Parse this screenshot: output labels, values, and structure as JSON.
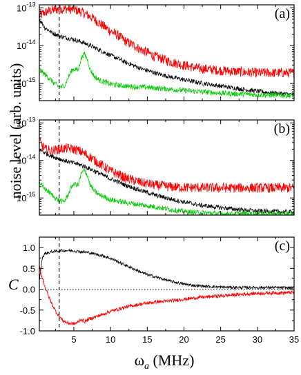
{
  "figure": {
    "shared_ylabel": "noise level (arb. units)",
    "x_label_omega": "ω",
    "x_label_sub": "a",
    "x_label_unit": " (MHz)",
    "vline_x": 3,
    "colors": {
      "red": "#ff0000",
      "black": "#000000",
      "green": "#00cc00"
    }
  },
  "chart_data": [
    {
      "id": "a",
      "type": "line",
      "panel_label": "(a)",
      "y_scale": "log",
      "xlim": [
        0.3,
        35
      ],
      "ylim": [
        3.5e-16,
        1.2e-13
      ],
      "yticks": [
        {
          "value": 1e-13,
          "mantissa": "10",
          "exp": "-13"
        },
        {
          "value": 1e-14,
          "mantissa": "10",
          "exp": "-14"
        },
        {
          "value": 1e-15,
          "mantissa": "10",
          "exp": "-15"
        }
      ],
      "show_xtick_labels": false,
      "series": [
        {
          "color": "red",
          "noise": 0.13,
          "x": [
            0.3,
            1,
            2,
            3,
            4,
            5,
            6,
            7,
            8,
            9,
            10,
            12,
            14,
            16,
            18,
            20,
            22,
            25,
            28,
            30,
            32,
            35
          ],
          "y": [
            6e-14,
            7.5e-14,
            8.6e-14,
            9.3e-14,
            9.4e-14,
            9e-14,
            7.8e-14,
            6.2e-14,
            4.6e-14,
            3.3e-14,
            2.4e-14,
            1.3e-14,
            8e-15,
            5.2e-15,
            3.8e-15,
            3e-15,
            2.5e-15,
            2.2e-15,
            2e-15,
            1.9e-15,
            1.9e-15,
            1.9e-15
          ]
        },
        {
          "color": "black",
          "noise": 0.06,
          "x": [
            0.3,
            1,
            2,
            3,
            4,
            5,
            6,
            7,
            8,
            9,
            10,
            12,
            14,
            16,
            18,
            20,
            22,
            25,
            28,
            30,
            32,
            35
          ],
          "y": [
            5e-14,
            3e-14,
            2.2e-14,
            1.8e-14,
            1.6e-14,
            1.45e-14,
            1.25e-14,
            1.05e-14,
            8.5e-15,
            6.8e-15,
            5.5e-15,
            3.6e-15,
            2.5e-15,
            1.9e-15,
            1.5e-15,
            1.25e-15,
            1.05e-15,
            8.5e-16,
            7e-16,
            6.2e-16,
            5.6e-16,
            5e-16
          ]
        },
        {
          "color": "green",
          "noise": 0.07,
          "x": [
            0.3,
            0.8,
            1.5,
            2.2,
            2.8,
            3.3,
            3.8,
            4.3,
            4.8,
            5.2,
            5.6,
            6,
            6.4,
            6.8,
            7.2,
            7.8,
            8.5,
            10,
            12,
            15,
            20,
            25,
            30,
            35
          ],
          "y": [
            2.4e-15,
            1.9e-15,
            1.45e-15,
            1.05e-15,
            8.5e-16,
            8e-16,
            9e-16,
            1.5e-15,
            2.3e-15,
            2.4e-15,
            2.2e-15,
            4.5e-15,
            6e-15,
            4.5e-15,
            2.3e-15,
            1.5e-15,
            1.2e-15,
            9.5e-16,
            8.5e-16,
            7.8e-16,
            6.5e-16,
            5.5e-16,
            5e-16,
            4.8e-16
          ]
        }
      ]
    },
    {
      "id": "b",
      "type": "line",
      "panel_label": "(b)",
      "y_scale": "log",
      "xlim": [
        0.3,
        35
      ],
      "ylim": [
        3.5e-16,
        1.2e-13
      ],
      "yticks": [
        {
          "value": 1e-13,
          "mantissa": "10",
          "exp": "-13"
        },
        {
          "value": 1e-14,
          "mantissa": "10",
          "exp": "-14"
        },
        {
          "value": 1e-15,
          "mantissa": "10",
          "exp": "-15"
        }
      ],
      "show_xtick_labels": false,
      "series": [
        {
          "color": "red",
          "noise": 0.13,
          "x": [
            0.3,
            1,
            2,
            3,
            4,
            5,
            6,
            7,
            8,
            9,
            10,
            12,
            14,
            16,
            18,
            20,
            25,
            30,
            35
          ],
          "y": [
            3.2e-14,
            2e-14,
            1.8e-14,
            2e-14,
            2.1e-14,
            2e-14,
            1.7e-14,
            1.3e-14,
            9.5e-15,
            7e-15,
            5.2e-15,
            3.4e-15,
            2.6e-15,
            2.2e-15,
            2e-15,
            1.9e-15,
            1.85e-15,
            1.85e-15,
            1.85e-15
          ]
        },
        {
          "color": "black",
          "noise": 0.06,
          "x": [
            0.3,
            1,
            2,
            3,
            4,
            5,
            6,
            7,
            8,
            9,
            10,
            12,
            14,
            16,
            18,
            20,
            22,
            25,
            28,
            30,
            35
          ],
          "y": [
            2e-14,
            1.6e-14,
            1.3e-14,
            1.1e-14,
            9.5e-15,
            8.5e-15,
            7.5e-15,
            6.2e-15,
            5e-15,
            4e-15,
            3.2e-15,
            2.2e-15,
            1.6e-15,
            1.2e-15,
            9.5e-16,
            7.8e-16,
            6.5e-16,
            5.5e-16,
            4.8e-16,
            4.5e-16,
            4.2e-16
          ]
        },
        {
          "color": "green",
          "noise": 0.07,
          "x": [
            0.3,
            0.8,
            1.5,
            2.2,
            2.8,
            3.3,
            3.8,
            4.3,
            4.8,
            5.2,
            5.6,
            6,
            6.4,
            6.8,
            7.2,
            7.8,
            8.5,
            10,
            12,
            15,
            18,
            20,
            25
          ],
          "y": [
            2.6e-15,
            1.9e-15,
            1.5e-15,
            1.1e-15,
            9e-16,
            8e-16,
            8.5e-16,
            1.3e-15,
            2.2e-15,
            2.3e-15,
            2.2e-15,
            4.3e-15,
            5.5e-15,
            4.2e-15,
            2.2e-15,
            1.5e-15,
            1.2e-15,
            9e-16,
            7.5e-16,
            6.2e-16,
            5e-16,
            4.3e-16,
            3.8e-16
          ]
        }
      ]
    },
    {
      "id": "c",
      "type": "line",
      "panel_label": "(c)",
      "y_scale": "linear",
      "ylabel": "C",
      "xlim": [
        0.3,
        35
      ],
      "ylim": [
        -1.0,
        1.25
      ],
      "yticks": [
        {
          "value": 1.0,
          "label": "1.0"
        },
        {
          "value": 0.5,
          "label": "0.5"
        },
        {
          "value": 0.0,
          "label": "0.0"
        },
        {
          "value": -0.5,
          "label": "-0.5"
        },
        {
          "value": -1.0,
          "label": "-1.0"
        }
      ],
      "show_xtick_labels": true,
      "xticks": [
        5,
        10,
        15,
        20,
        25,
        30,
        35
      ],
      "xtick_labels": [
        "5",
        "10",
        "15",
        "20",
        "25",
        "30",
        "35"
      ],
      "hline_y": 0,
      "series": [
        {
          "color": "black",
          "noise": 0.035,
          "x": [
            0.3,
            0.7,
            1,
            2,
            3,
            4,
            5,
            6,
            7,
            8,
            9,
            10,
            11,
            12,
            13,
            14,
            15,
            16,
            18,
            20,
            22,
            25,
            28,
            30,
            32,
            35
          ],
          "y": [
            0.2,
            0.75,
            0.85,
            0.9,
            0.92,
            0.93,
            0.92,
            0.9,
            0.88,
            0.84,
            0.8,
            0.74,
            0.66,
            0.58,
            0.5,
            0.42,
            0.35,
            0.3,
            0.2,
            0.12,
            0.08,
            0.05,
            0.04,
            0.04,
            0.04,
            0.03
          ]
        },
        {
          "color": "red",
          "noise": 0.04,
          "x": [
            0.3,
            0.5,
            1,
            1.5,
            2,
            2.5,
            3,
            3.5,
            4,
            4.5,
            5,
            5.5,
            6,
            6.5,
            7,
            8,
            9,
            10,
            12,
            14,
            16,
            18,
            20,
            22,
            25,
            28,
            30,
            32,
            35
          ],
          "y": [
            0.55,
            0.4,
            0.1,
            -0.15,
            -0.35,
            -0.52,
            -0.65,
            -0.75,
            -0.8,
            -0.82,
            -0.83,
            -0.8,
            -0.72,
            -0.78,
            -0.72,
            -0.66,
            -0.6,
            -0.53,
            -0.43,
            -0.36,
            -0.31,
            -0.28,
            -0.24,
            -0.2,
            -0.16,
            -0.12,
            -0.1,
            -0.09,
            -0.08
          ]
        }
      ]
    }
  ]
}
